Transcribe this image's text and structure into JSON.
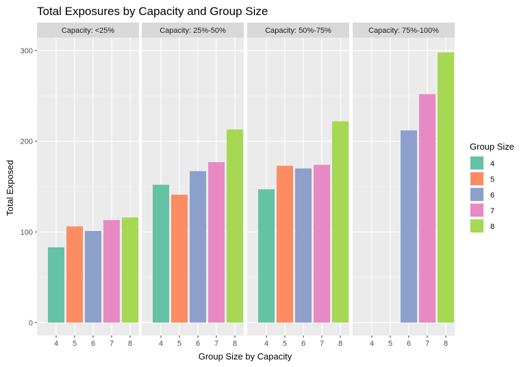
{
  "chart_data": {
    "type": "bar",
    "title": "Total Exposures by Capacity and Group Size",
    "xlabel": "Group Size by Capacity",
    "ylabel": "Total Exposed",
    "ylim": [
      0,
      310
    ],
    "y_ticks": [
      0,
      100,
      200,
      300
    ],
    "x_categories": [
      "4",
      "5",
      "6",
      "7",
      "8"
    ],
    "grid": true,
    "legend": {
      "title": "Group Size",
      "placement": "right",
      "entries": [
        "4",
        "5",
        "6",
        "7",
        "8"
      ]
    },
    "colors": {
      "4": "#66c2a5",
      "5": "#fc8d62",
      "6": "#8da0cb",
      "7": "#e78ac3",
      "8": "#a6d854"
    },
    "panels": [
      {
        "label": "Capacity: <25%",
        "values": [
          83,
          106,
          101,
          113,
          116
        ]
      },
      {
        "label": "Capacity: 25%-50%",
        "values": [
          152,
          141,
          167,
          177,
          213
        ]
      },
      {
        "label": "Capacity: 50%-75%",
        "values": [
          147,
          173,
          170,
          174,
          222
        ]
      },
      {
        "label": "Capacity: 75%-100%",
        "values": [
          null,
          null,
          212,
          252,
          298
        ]
      }
    ]
  }
}
